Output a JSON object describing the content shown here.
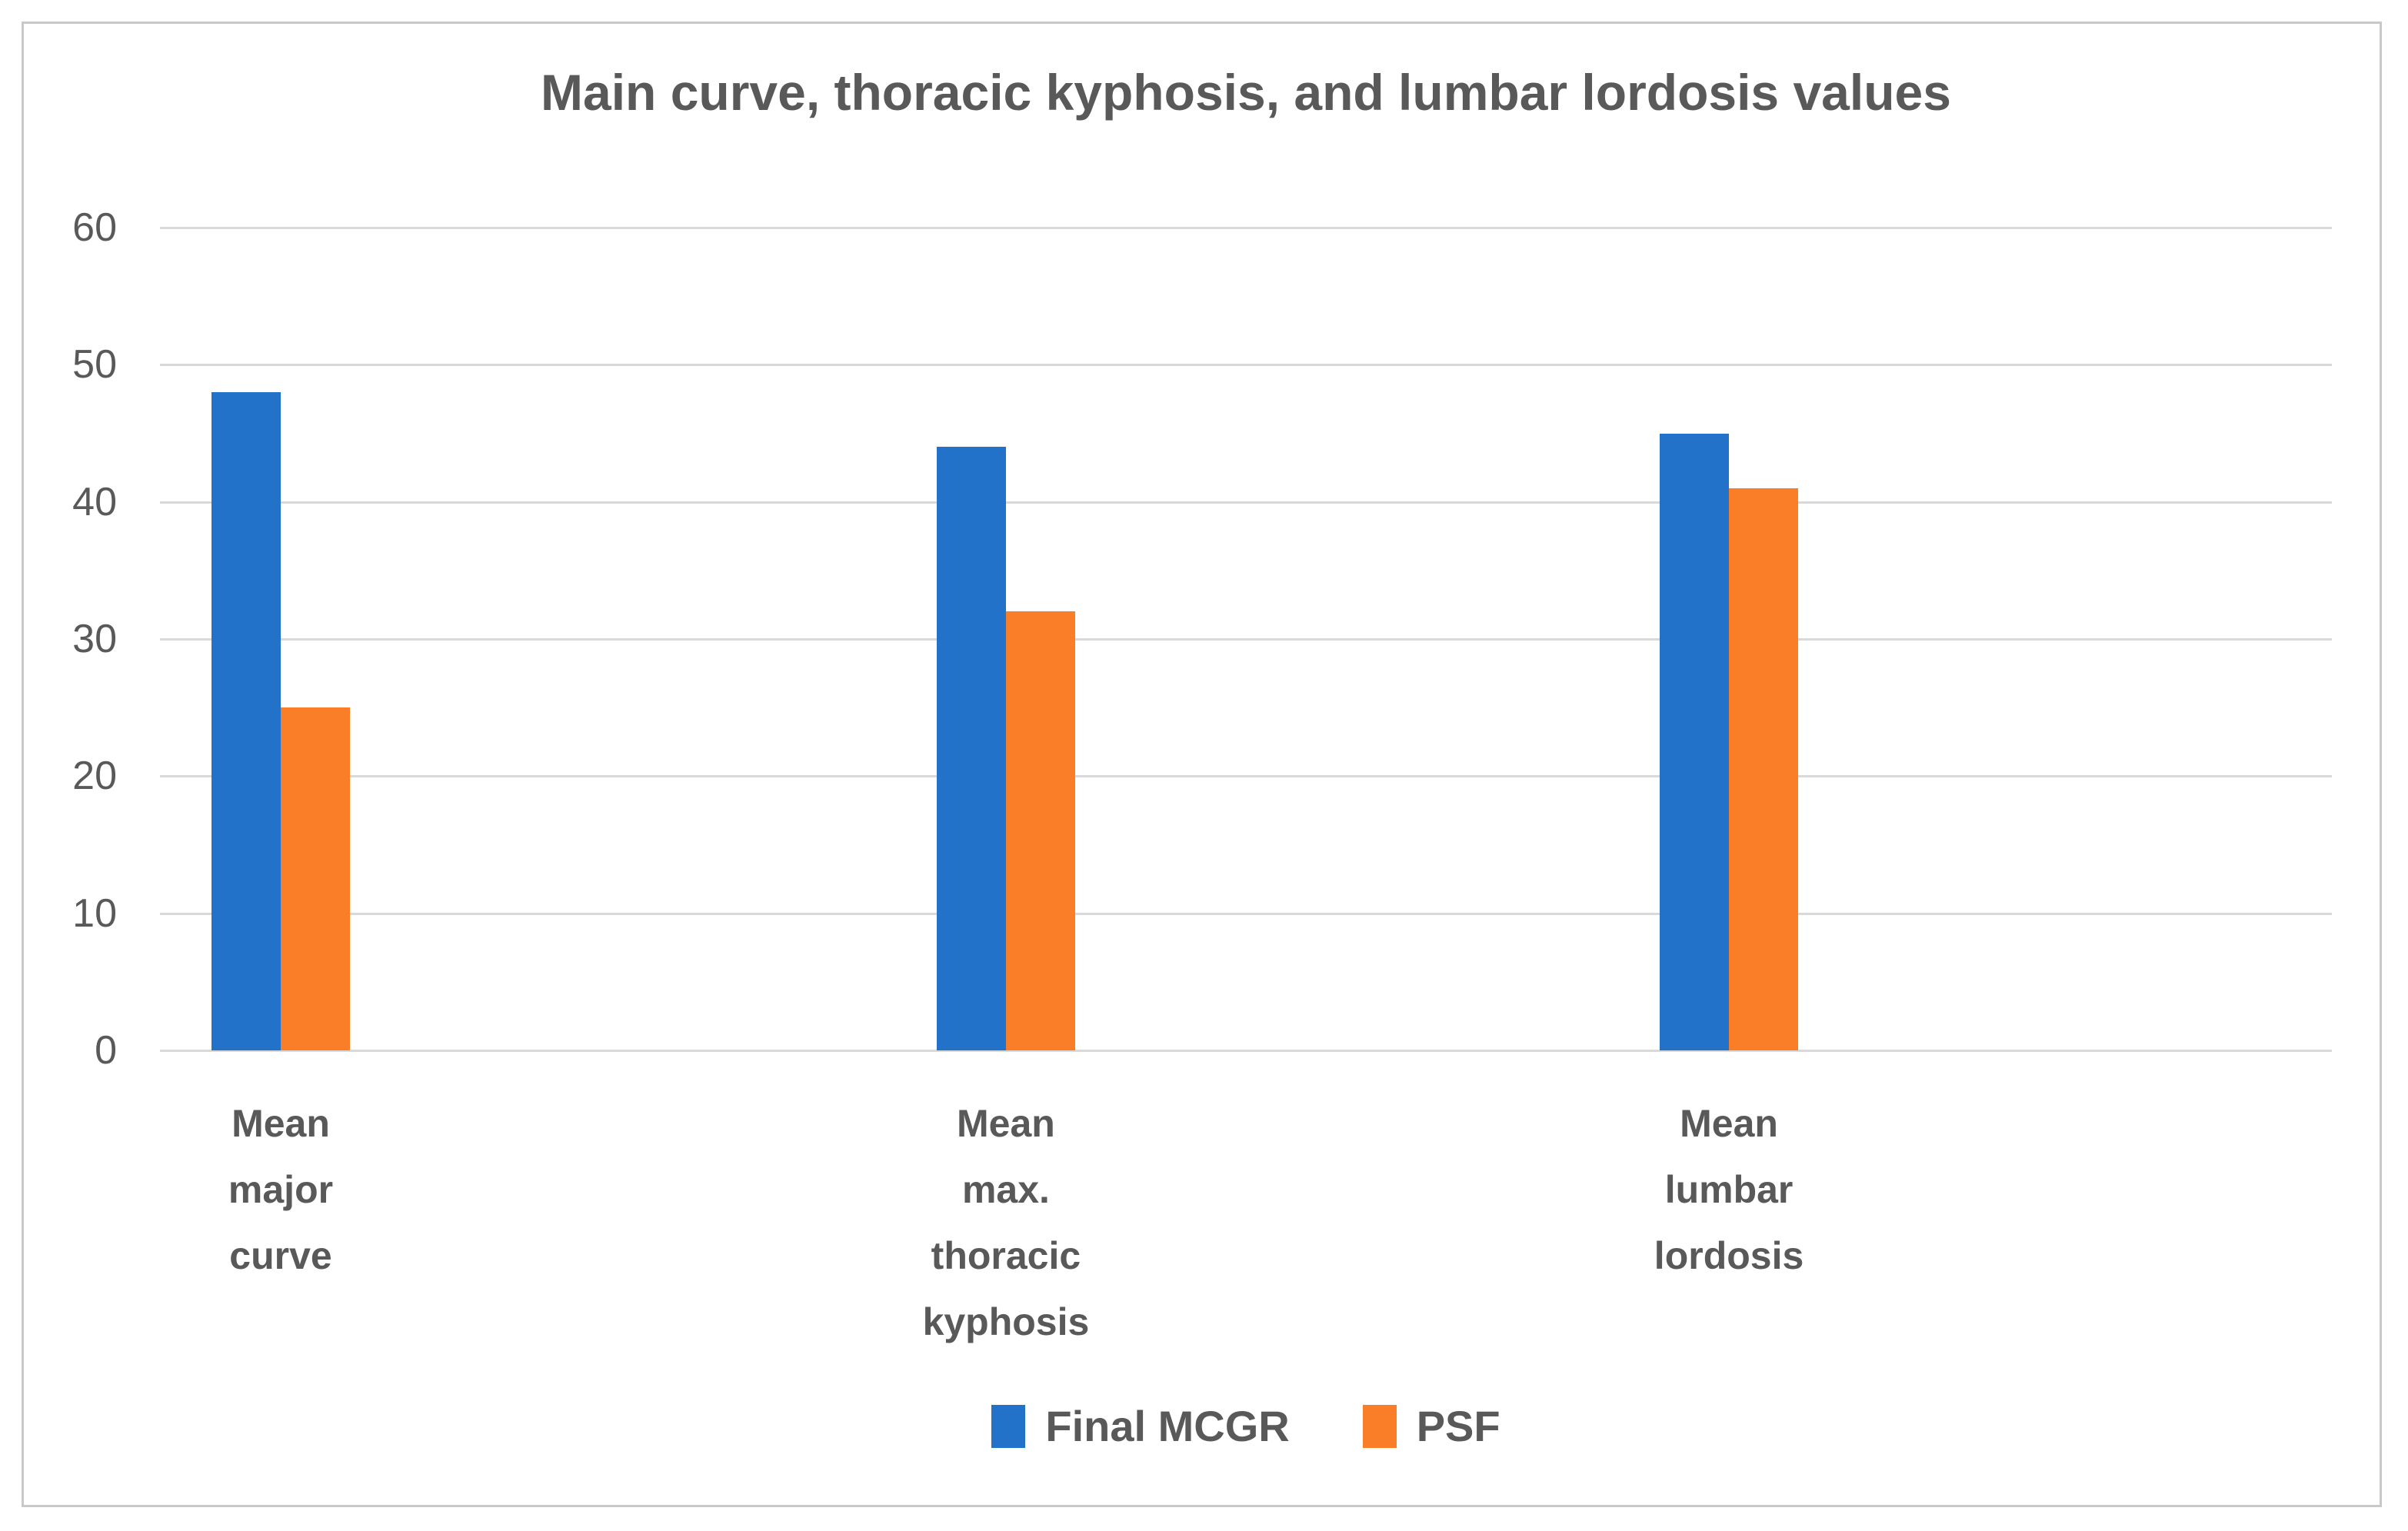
{
  "chart_data": {
    "type": "bar",
    "title": "Main curve, thoracic kyphosis, and lumbar lordosis values",
    "categories": [
      "Mean major curve",
      "Mean max. thoracic kyphosis",
      "Mean lumbar lordosis"
    ],
    "category_lines": [
      [
        "Mean",
        "major",
        "curve"
      ],
      [
        "Mean",
        "max.",
        "thoracic",
        "kyphosis"
      ],
      [
        "Mean",
        "lumbar",
        "lordosis"
      ]
    ],
    "series": [
      {
        "name": "Final MCGR",
        "color": "#2272c9",
        "values": [
          48,
          44,
          45
        ]
      },
      {
        "name": "PSF",
        "color": "#f97e27",
        "values": [
          25,
          32,
          41
        ]
      }
    ],
    "xlabel": "",
    "ylabel": "",
    "ylim": [
      0,
      60
    ],
    "ytick_step": 10,
    "ytick_labels": [
      "0",
      "10",
      "20",
      "30",
      "40",
      "50",
      "60"
    ],
    "grid": true,
    "legend_position": "bottom",
    "colors": {
      "text": "#595959",
      "gridline": "#d9d9d9",
      "frame_border": "#c9c9c9",
      "background": "#ffffff"
    }
  }
}
